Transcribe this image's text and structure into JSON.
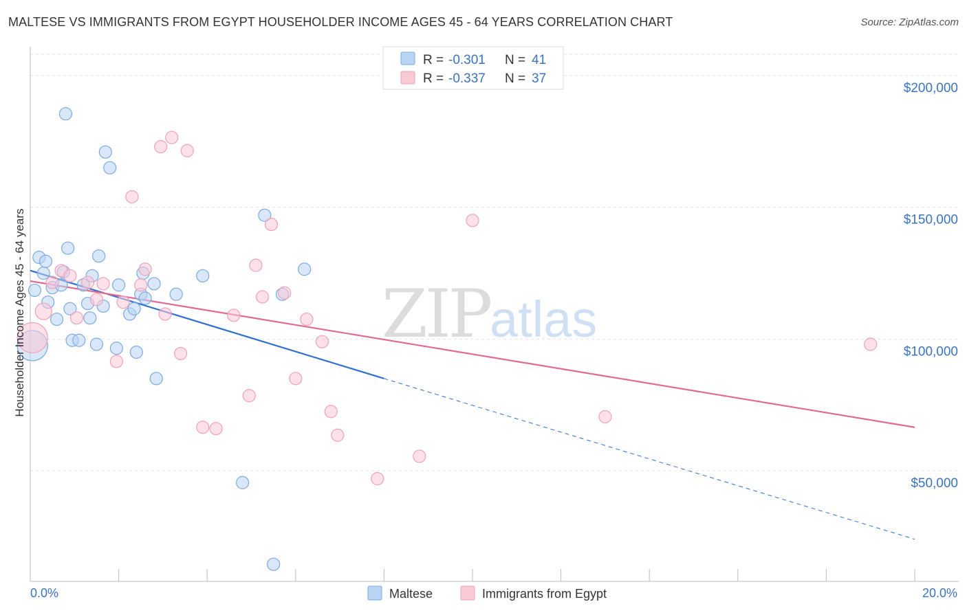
{
  "title": "MALTESE VS IMMIGRANTS FROM EGYPT HOUSEHOLDER INCOME AGES 45 - 64 YEARS CORRELATION CHART",
  "source": "Source: ZipAtlas.com",
  "watermark": {
    "zip": "ZIP",
    "atlas": "atlas"
  },
  "chart_data": {
    "type": "scatter",
    "ylabel": "Householder Income Ages 45 - 64 years",
    "xlim": [
      0,
      20
    ],
    "ylim": [
      8000,
      212000
    ],
    "x_tick_labels": {
      "left": "0.0%",
      "right": "20.0%"
    },
    "y_ticks": [
      {
        "value": 50000,
        "label": "$50,000"
      },
      {
        "value": 100000,
        "label": "$100,000"
      },
      {
        "value": 150000,
        "label": "$150,000"
      },
      {
        "value": 200000,
        "label": "$200,000"
      }
    ],
    "grid": true,
    "legend": {
      "position": "top-center",
      "rows": [
        {
          "r_label": "R = ",
          "r_value": "-0.301",
          "n_label": "N = ",
          "n_value": "41"
        },
        {
          "r_label": "R = ",
          "r_value": "-0.337",
          "n_label": "N = ",
          "n_value": "37"
        }
      ]
    },
    "series": [
      {
        "name": "Maltese",
        "color": "#7aaae3",
        "fill": "#b9d3f3",
        "trend": {
          "x": [
            0,
            8
          ],
          "y": [
            126000,
            85000
          ],
          "dashed_to_x": 20,
          "dashed_to_y": 24000,
          "color": "#2f6fd0"
        },
        "points": [
          {
            "x": 0.05,
            "y": 97500,
            "big": true
          },
          {
            "x": 0.1,
            "y": 118500
          },
          {
            "x": 0.2,
            "y": 131000
          },
          {
            "x": 0.3,
            "y": 125000
          },
          {
            "x": 0.35,
            "y": 129500
          },
          {
            "x": 0.4,
            "y": 114000
          },
          {
            "x": 0.5,
            "y": 119500
          },
          {
            "x": 0.6,
            "y": 107500
          },
          {
            "x": 0.7,
            "y": 120500
          },
          {
            "x": 0.75,
            "y": 125500
          },
          {
            "x": 0.8,
            "y": 185500
          },
          {
            "x": 0.85,
            "y": 134500
          },
          {
            "x": 0.9,
            "y": 111500
          },
          {
            "x": 0.95,
            "y": 99500
          },
          {
            "x": 1.1,
            "y": 99500
          },
          {
            "x": 1.2,
            "y": 120500
          },
          {
            "x": 1.3,
            "y": 113500
          },
          {
            "x": 1.35,
            "y": 108000
          },
          {
            "x": 1.4,
            "y": 124000
          },
          {
            "x": 1.5,
            "y": 98000
          },
          {
            "x": 1.55,
            "y": 131500
          },
          {
            "x": 1.65,
            "y": 112500
          },
          {
            "x": 1.7,
            "y": 171000
          },
          {
            "x": 1.8,
            "y": 165000
          },
          {
            "x": 1.95,
            "y": 96500
          },
          {
            "x": 2.0,
            "y": 120500
          },
          {
            "x": 2.25,
            "y": 109500
          },
          {
            "x": 2.35,
            "y": 111500
          },
          {
            "x": 2.4,
            "y": 95000
          },
          {
            "x": 2.5,
            "y": 117000
          },
          {
            "x": 2.55,
            "y": 125000
          },
          {
            "x": 2.6,
            "y": 115500
          },
          {
            "x": 2.8,
            "y": 121000
          },
          {
            "x": 2.85,
            "y": 85000
          },
          {
            "x": 3.3,
            "y": 117000
          },
          {
            "x": 3.9,
            "y": 124000
          },
          {
            "x": 4.8,
            "y": 45500
          },
          {
            "x": 5.3,
            "y": 147000
          },
          {
            "x": 5.5,
            "y": 14500
          },
          {
            "x": 5.7,
            "y": 117000
          },
          {
            "x": 6.2,
            "y": 126500
          }
        ]
      },
      {
        "name": "Immigrants from Egypt",
        "color": "#f0a0b8",
        "fill": "#f9c9d6",
        "trend": {
          "x": [
            0,
            20
          ],
          "y": [
            122000,
            66500
          ],
          "color": "#e06a92"
        },
        "points": [
          {
            "x": 0.05,
            "y": 100500,
            "big": true
          },
          {
            "x": 0.3,
            "y": 110500,
            "mid": true
          },
          {
            "x": 0.5,
            "y": 121500
          },
          {
            "x": 0.7,
            "y": 126000
          },
          {
            "x": 0.9,
            "y": 124000
          },
          {
            "x": 1.05,
            "y": 108000
          },
          {
            "x": 1.3,
            "y": 121500
          },
          {
            "x": 1.5,
            "y": 115000
          },
          {
            "x": 1.65,
            "y": 121000
          },
          {
            "x": 1.95,
            "y": 91500
          },
          {
            "x": 2.1,
            "y": 114000
          },
          {
            "x": 2.3,
            "y": 154000
          },
          {
            "x": 2.5,
            "y": 120500
          },
          {
            "x": 2.6,
            "y": 126500
          },
          {
            "x": 2.95,
            "y": 173000
          },
          {
            "x": 3.05,
            "y": 109500
          },
          {
            "x": 3.2,
            "y": 176500
          },
          {
            "x": 3.4,
            "y": 94500
          },
          {
            "x": 3.55,
            "y": 171500
          },
          {
            "x": 3.9,
            "y": 66500
          },
          {
            "x": 4.2,
            "y": 66000
          },
          {
            "x": 4.6,
            "y": 109000
          },
          {
            "x": 4.95,
            "y": 78500
          },
          {
            "x": 5.1,
            "y": 128000
          },
          {
            "x": 5.25,
            "y": 116000
          },
          {
            "x": 5.45,
            "y": 143500
          },
          {
            "x": 5.75,
            "y": 117500
          },
          {
            "x": 6.0,
            "y": 85000
          },
          {
            "x": 6.25,
            "y": 107500
          },
          {
            "x": 6.6,
            "y": 99000
          },
          {
            "x": 6.8,
            "y": 72500
          },
          {
            "x": 6.95,
            "y": 63500
          },
          {
            "x": 7.85,
            "y": 47000
          },
          {
            "x": 8.8,
            "y": 55500
          },
          {
            "x": 10.0,
            "y": 145000
          },
          {
            "x": 13.0,
            "y": 70500
          },
          {
            "x": 19.0,
            "y": 98000
          }
        ]
      }
    ]
  }
}
